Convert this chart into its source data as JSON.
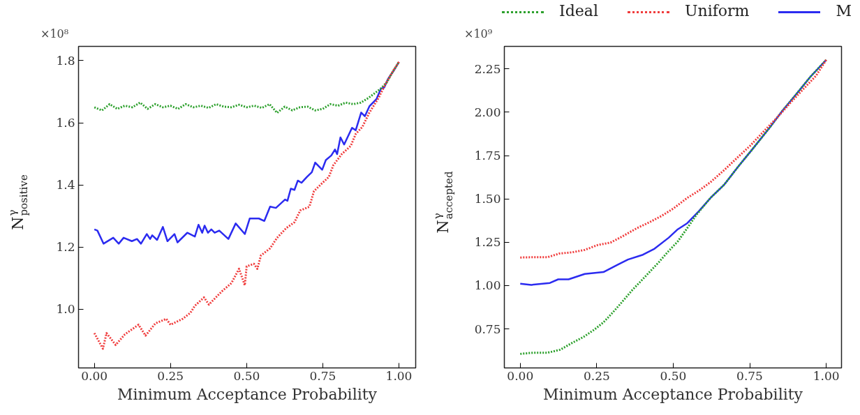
{
  "chart_data": [
    {
      "type": "line",
      "ylabel": "N$^{γ}$$_{positive}$",
      "xlabel": "Minimum Acceptance Probability",
      "annotations": [
        "×10⁸"
      ],
      "xlim": [
        -0.052,
        1.055
      ],
      "ylim": [
        0.811,
        1.846
      ],
      "xticks": [
        {
          "value": 0,
          "label": "0.00"
        },
        {
          "value": 0.25,
          "label": "0.25"
        },
        {
          "value": 0.5,
          "label": "0.50"
        },
        {
          "value": 0.75,
          "label": "0.75"
        },
        {
          "value": 1,
          "label": "1.00"
        }
      ],
      "yticks": [
        {
          "value": 1.0,
          "label": "1.0"
        },
        {
          "value": 1.2,
          "label": "1.2"
        },
        {
          "value": 1.4,
          "label": "1.4"
        },
        {
          "value": 1.6,
          "label": "1.6"
        },
        {
          "value": 1.8,
          "label": "1.8"
        }
      ],
      "grid": false,
      "series": [
        {
          "color": "#2ca02c",
          "line_style": "dotted",
          "x": [
            0,
            0.025,
            0.05,
            0.075,
            0.1,
            0.125,
            0.15,
            0.175,
            0.2,
            0.225,
            0.25,
            0.275,
            0.3,
            0.325,
            0.35,
            0.375,
            0.4,
            0.425,
            0.45,
            0.475,
            0.5,
            0.525,
            0.55,
            0.575,
            0.6,
            0.625,
            0.65,
            0.675,
            0.7,
            0.725,
            0.75,
            0.775,
            0.8,
            0.825,
            0.85,
            0.875,
            0.9,
            0.92,
            0.94,
            0.96,
            0.98,
            1.0
          ],
          "values": [
            1.65,
            1.64,
            1.66,
            1.645,
            1.655,
            1.65,
            1.665,
            1.645,
            1.66,
            1.65,
            1.655,
            1.645,
            1.66,
            1.65,
            1.655,
            1.648,
            1.66,
            1.652,
            1.65,
            1.658,
            1.65,
            1.655,
            1.648,
            1.66,
            1.632,
            1.652,
            1.64,
            1.65,
            1.652,
            1.64,
            1.645,
            1.66,
            1.655,
            1.665,
            1.66,
            1.665,
            1.68,
            1.695,
            1.71,
            1.73,
            1.765,
            1.796
          ]
        },
        {
          "color": "#f03c3c",
          "line_style": "dotted",
          "x": [
            0,
            0.028,
            0.04,
            0.07,
            0.1,
            0.145,
            0.168,
            0.2,
            0.236,
            0.25,
            0.29,
            0.315,
            0.33,
            0.36,
            0.376,
            0.418,
            0.45,
            0.475,
            0.494,
            0.5,
            0.524,
            0.535,
            0.547,
            0.577,
            0.6,
            0.63,
            0.657,
            0.676,
            0.706,
            0.721,
            0.745,
            0.77,
            0.785,
            0.812,
            0.842,
            0.858,
            0.88,
            0.903,
            0.933,
            0.956,
            0.979,
            1.0
          ],
          "values": [
            0.923,
            0.873,
            0.923,
            0.885,
            0.919,
            0.95,
            0.915,
            0.954,
            0.969,
            0.95,
            0.969,
            0.988,
            1.011,
            1.038,
            1.015,
            1.057,
            1.084,
            1.13,
            1.077,
            1.138,
            1.146,
            1.13,
            1.173,
            1.196,
            1.23,
            1.261,
            1.28,
            1.318,
            1.33,
            1.38,
            1.403,
            1.426,
            1.464,
            1.499,
            1.526,
            1.564,
            1.587,
            1.633,
            1.68,
            1.725,
            1.764,
            1.796
          ]
        },
        {
          "color": "#2b2bf0",
          "line_style": "solid",
          "x": [
            0,
            0.01,
            0.03,
            0.062,
            0.08,
            0.096,
            0.123,
            0.14,
            0.153,
            0.172,
            0.183,
            0.19,
            0.206,
            0.225,
            0.24,
            0.263,
            0.273,
            0.305,
            0.33,
            0.342,
            0.354,
            0.362,
            0.373,
            0.384,
            0.395,
            0.41,
            0.44,
            0.464,
            0.494,
            0.51,
            0.54,
            0.558,
            0.577,
            0.596,
            0.626,
            0.634,
            0.645,
            0.657,
            0.668,
            0.68,
            0.698,
            0.714,
            0.725,
            0.748,
            0.76,
            0.778,
            0.79,
            0.797,
            0.808,
            0.82,
            0.846,
            0.858,
            0.876,
            0.888,
            0.903,
            0.926,
            0.941,
            0.952,
            0.964,
            0.983,
            1.0
          ],
          "values": [
            1.257,
            1.253,
            1.211,
            1.23,
            1.211,
            1.23,
            1.219,
            1.226,
            1.211,
            1.242,
            1.226,
            1.238,
            1.223,
            1.265,
            1.219,
            1.242,
            1.215,
            1.246,
            1.234,
            1.272,
            1.246,
            1.269,
            1.246,
            1.257,
            1.246,
            1.253,
            1.226,
            1.276,
            1.242,
            1.292,
            1.292,
            1.284,
            1.33,
            1.326,
            1.353,
            1.349,
            1.388,
            1.384,
            1.414,
            1.407,
            1.426,
            1.441,
            1.472,
            1.449,
            1.48,
            1.495,
            1.514,
            1.499,
            1.553,
            1.53,
            1.584,
            1.576,
            1.633,
            1.621,
            1.653,
            1.676,
            1.71,
            1.714,
            1.741,
            1.768,
            1.796
          ]
        }
      ]
    },
    {
      "type": "line",
      "ylabel": "N$^{γ}$$_{accepted}$",
      "xlabel": "Minimum Acceptance Probability",
      "annotations": [
        "×10⁹"
      ],
      "xlim": [
        -0.052,
        1.05
      ],
      "ylim": [
        0.525,
        2.38
      ],
      "xticks": [
        {
          "value": 0,
          "label": "0.00"
        },
        {
          "value": 0.25,
          "label": "0.25"
        },
        {
          "value": 0.5,
          "label": "0.50"
        },
        {
          "value": 0.75,
          "label": "0.75"
        },
        {
          "value": 1,
          "label": "1.00"
        }
      ],
      "yticks": [
        0.75,
        {
          "value": 1.0,
          "label": "1.00"
        },
        1.25,
        {
          "value": 1.5,
          "label": "1.50"
        },
        1.75,
        {
          "value": 2.0,
          "label": "2.00"
        },
        2.25
      ],
      "grid": false,
      "legend": "top",
      "series": [
        {
          "name": "Ideal",
          "color": "#2ca02c",
          "line_style": "dotted",
          "x": [
            0,
            0.044,
            0.09,
            0.131,
            0.166,
            0.207,
            0.242,
            0.272,
            0.302,
            0.333,
            0.367,
            0.394,
            0.424,
            0.454,
            0.485,
            0.515,
            0.546,
            0.576,
            0.622,
            0.667,
            0.713,
            0.758,
            0.812,
            0.857,
            0.903,
            0.948,
            1.0
          ],
          "values": [
            0.606,
            0.613,
            0.613,
            0.63,
            0.666,
            0.704,
            0.746,
            0.788,
            0.844,
            0.906,
            0.976,
            1.025,
            1.081,
            1.137,
            1.199,
            1.255,
            1.332,
            1.409,
            1.506,
            1.583,
            1.688,
            1.785,
            1.904,
            2.009,
            2.106,
            2.204,
            2.302
          ]
        },
        {
          "name": "Uniform",
          "color": "#f03c3c",
          "line_style": "dotted",
          "x": [
            0,
            0.044,
            0.09,
            0.128,
            0.17,
            0.211,
            0.253,
            0.295,
            0.333,
            0.382,
            0.424,
            0.462,
            0.5,
            0.546,
            0.584,
            0.622,
            0.667,
            0.713,
            0.751,
            0.796,
            0.842,
            0.888,
            0.933,
            0.967,
            1.0
          ],
          "values": [
            1.162,
            1.164,
            1.164,
            1.185,
            1.192,
            1.206,
            1.234,
            1.248,
            1.283,
            1.332,
            1.367,
            1.402,
            1.444,
            1.506,
            1.548,
            1.597,
            1.667,
            1.744,
            1.806,
            1.89,
            1.974,
            2.064,
            2.148,
            2.211,
            2.302
          ]
        },
        {
          "name": "M",
          "color": "#2b2bf0",
          "line_style": "solid",
          "x": [
            0,
            0.036,
            0.097,
            0.124,
            0.158,
            0.211,
            0.272,
            0.318,
            0.352,
            0.401,
            0.439,
            0.485,
            0.515,
            0.546,
            0.584,
            0.622,
            0.667,
            0.713,
            0.758,
            0.812,
            0.857,
            0.903,
            0.948,
            1.0
          ],
          "values": [
            1.011,
            1.004,
            1.015,
            1.036,
            1.036,
            1.067,
            1.078,
            1.12,
            1.15,
            1.178,
            1.213,
            1.276,
            1.325,
            1.36,
            1.43,
            1.506,
            1.583,
            1.688,
            1.785,
            1.904,
            2.009,
            2.106,
            2.204,
            2.302
          ]
        }
      ]
    }
  ]
}
